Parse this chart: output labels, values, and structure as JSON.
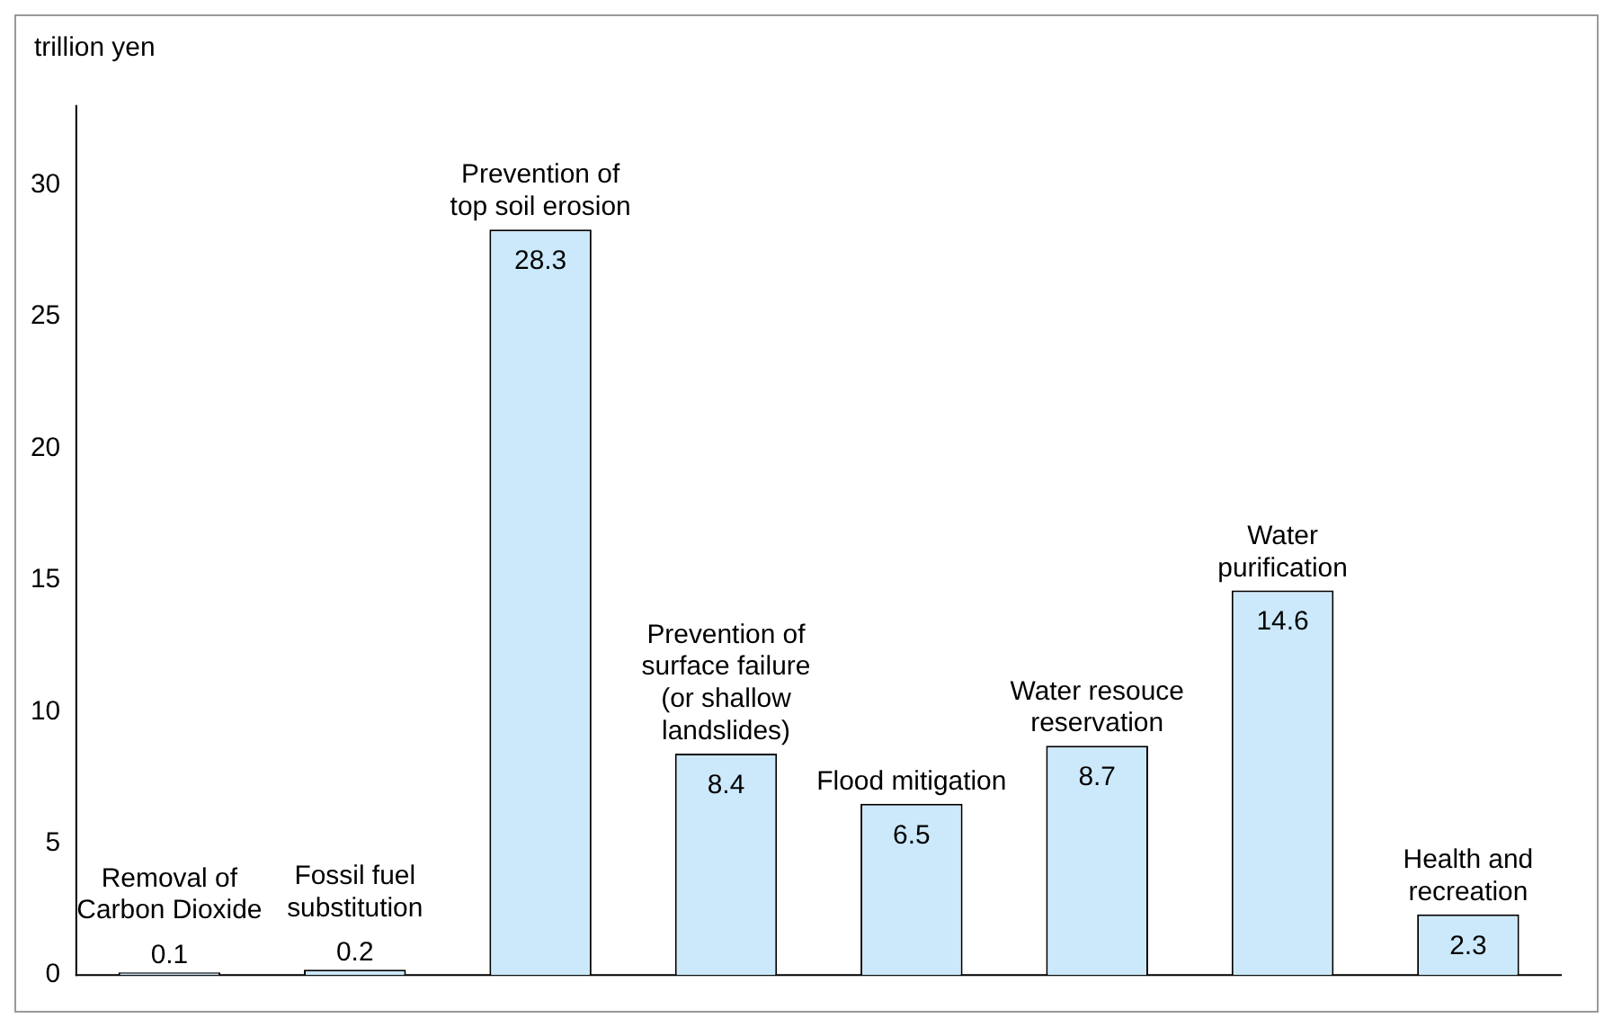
{
  "chart_data": {
    "type": "bar",
    "ylabel": "trillion yen",
    "categories": [
      "Removal of Carbon Dioxide",
      "Fossil fuel substitution",
      "Prevention of top soil erosion",
      "Prevention of surface failure (or shallow landslides)",
      "Flood mitigation",
      "Water resouce reservation",
      "Water purification",
      "Health and recreation"
    ],
    "values": [
      0.1,
      0.2,
      28.3,
      8.4,
      6.5,
      8.7,
      14.6,
      2.3
    ],
    "color": "#cce9fb",
    "ylim": [
      0,
      33
    ],
    "yticks": [
      0,
      5,
      10,
      15,
      20,
      25,
      30
    ],
    "grid": false,
    "data_labels": true
  }
}
